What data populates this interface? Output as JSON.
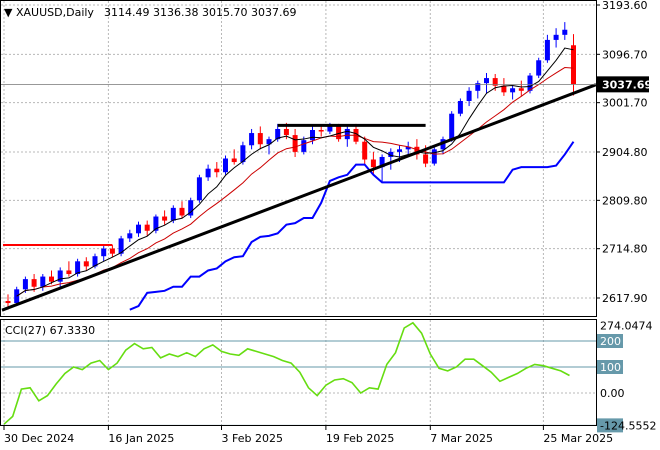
{
  "header": {
    "symbol": "XAUUSD,Daily",
    "ohlc": "3114.49 3136.38 3015.70 3037.69"
  },
  "cci_header": "CCI(27) 67.3330",
  "price_axis": {
    "ticks": [
      "3193.60",
      "3096.70",
      "3001.70",
      "2904.80",
      "2809.80",
      "2714.80",
      "2617.90"
    ],
    "current_label": "3037.69"
  },
  "cci_axis": {
    "ticks": [
      "274.0474",
      "200",
      "100",
      "0.00",
      "-124.5552"
    ]
  },
  "time_axis": {
    "labels": [
      "30 Dec 2024",
      "16 Jan 2025",
      "3 Feb 2025",
      "19 Feb 2025",
      "7 Mar 2025",
      "25 Mar 2025"
    ]
  },
  "colors": {
    "bull": "#0000ff",
    "bear": "#ff0000",
    "fast_ma": "#000000",
    "slow_ma": "#cc0000",
    "support_line": "#0000ff",
    "cci_line": "#66dd11",
    "cci_levels": "#6699aa",
    "grid": "#b8b8b8",
    "trendline": "#000000",
    "resistance_old": "#ff0000"
  },
  "chart_data": [
    {
      "type": "candlestick",
      "title": "XAUUSD,Daily",
      "ylim": [
        2590,
        3200
      ],
      "series": [
        {
          "name": "XAUUSD",
          "ohlc": [
            [
              2612,
              2625,
              2595,
              2608
            ],
            [
              2608,
              2640,
              2602,
              2635
            ],
            [
              2635,
              2660,
              2628,
              2655
            ],
            [
              2655,
              2665,
              2630,
              2640
            ],
            [
              2640,
              2665,
              2632,
              2660
            ],
            [
              2660,
              2672,
              2645,
              2650
            ],
            [
              2650,
              2678,
              2640,
              2672
            ],
            [
              2672,
              2690,
              2660,
              2665
            ],
            [
              2665,
              2695,
              2660,
              2690
            ],
            [
              2690,
              2698,
              2672,
              2680
            ],
            [
              2680,
              2705,
              2676,
              2700
            ],
            [
              2700,
              2720,
              2690,
              2715
            ],
            [
              2715,
              2722,
              2698,
              2705
            ],
            [
              2705,
              2740,
              2700,
              2735
            ],
            [
              2735,
              2752,
              2728,
              2745
            ],
            [
              2745,
              2768,
              2738,
              2762
            ],
            [
              2762,
              2770,
              2740,
              2750
            ],
            [
              2750,
              2782,
              2745,
              2778
            ],
            [
              2778,
              2790,
              2762,
              2770
            ],
            [
              2770,
              2800,
              2765,
              2795
            ],
            [
              2795,
              2808,
              2775,
              2780
            ],
            [
              2780,
              2815,
              2775,
              2810
            ],
            [
              2810,
              2860,
              2805,
              2855
            ],
            [
              2855,
              2880,
              2848,
              2872
            ],
            [
              2872,
              2885,
              2855,
              2865
            ],
            [
              2865,
              2898,
              2860,
              2892
            ],
            [
              2892,
              2910,
              2880,
              2885
            ],
            [
              2885,
              2925,
              2880,
              2918
            ],
            [
              2918,
              2950,
              2910,
              2942
            ],
            [
              2942,
              2955,
              2910,
              2920
            ],
            [
              2920,
              2935,
              2900,
              2930
            ],
            [
              2930,
              2960,
              2925,
              2950
            ],
            [
              2950,
              2962,
              2930,
              2938
            ],
            [
              2938,
              2950,
              2895,
              2905
            ],
            [
              2905,
              2935,
              2900,
              2928
            ],
            [
              2928,
              2955,
              2920,
              2948
            ],
            [
              2948,
              2958,
              2935,
              2945
            ],
            [
              2945,
              2962,
              2940,
              2955
            ],
            [
              2955,
              2960,
              2925,
              2930
            ],
            [
              2930,
              2955,
              2915,
              2950
            ],
            [
              2950,
              2960,
              2920,
              2925
            ],
            [
              2925,
              2935,
              2880,
              2890
            ],
            [
              2890,
              2905,
              2860,
              2875
            ],
            [
              2875,
              2900,
              2845,
              2895
            ],
            [
              2895,
              2912,
              2870,
              2905
            ],
            [
              2905,
              2918,
              2885,
              2910
            ],
            [
              2910,
              2925,
              2895,
              2915
            ],
            [
              2915,
              2930,
              2890,
              2900
            ],
            [
              2900,
              2918,
              2875,
              2882
            ],
            [
              2882,
              2915,
              2878,
              2910
            ],
            [
              2910,
              2935,
              2900,
              2930
            ],
            [
              2930,
              2985,
              2925,
              2980
            ],
            [
              2980,
              3010,
              2975,
              3005
            ],
            [
              3005,
              3032,
              2995,
              3025
            ],
            [
              3025,
              3045,
              3010,
              3040
            ],
            [
              3040,
              3060,
              3020,
              3050
            ],
            [
              3050,
              3058,
              3025,
              3035
            ],
            [
              3035,
              3050,
              3015,
              3022
            ],
            [
              3022,
              3035,
              3008,
              3030
            ],
            [
              3030,
              3045,
              3015,
              3025
            ],
            [
              3025,
              3060,
              3020,
              3055
            ],
            [
              3055,
              3090,
              3050,
              3085
            ],
            [
              3085,
              3135,
              3080,
              3125
            ],
            [
              3125,
              3148,
              3110,
              3135
            ],
            [
              3135,
              3160,
              3125,
              3145
            ],
            [
              3114.49,
              3136.38,
              3015.7,
              3037.69
            ]
          ]
        }
      ]
    },
    {
      "type": "line",
      "title": "CCI(27) 67.3330",
      "ylim": [
        -124.5552,
        274.0474
      ],
      "series": [
        {
          "name": "CCI(27)",
          "values": [
            -120,
            -90,
            15,
            20,
            -30,
            -10,
            35,
            75,
            100,
            90,
            115,
            125,
            90,
            115,
            165,
            190,
            170,
            175,
            135,
            150,
            140,
            155,
            140,
            170,
            185,
            160,
            150,
            145,
            170,
            160,
            150,
            140,
            125,
            115,
            80,
            20,
            -10,
            30,
            50,
            55,
            40,
            0,
            20,
            15,
            110,
            155,
            250,
            270,
            230,
            150,
            95,
            85,
            100,
            130,
            130,
            105,
            80,
            45,
            60,
            75,
            95,
            110,
            105,
            95,
            85,
            67.333
          ]
        }
      ]
    }
  ]
}
